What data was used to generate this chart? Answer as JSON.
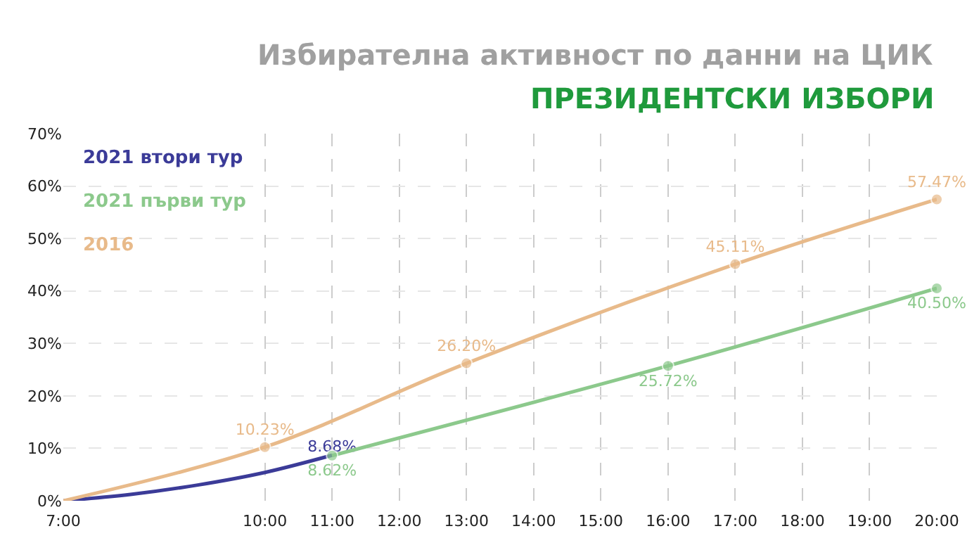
{
  "chart_data": {
    "type": "line",
    "title": "Избирателна активност по данни на ЦИК",
    "subtitle": "ПРЕЗИДЕНТСКИ ИЗБОРИ",
    "series": [
      {
        "name": "2021 втори тур",
        "color": "#3b3b98",
        "marker": "none",
        "x": [
          7,
          8,
          9,
          10,
          11
        ],
        "values": [
          0,
          1.2,
          3.0,
          5.4,
          8.68
        ],
        "value_labels": [
          null,
          null,
          null,
          null,
          "8.68%"
        ]
      },
      {
        "name": "2021 първи тур",
        "color": "#8cc98c",
        "x": [
          11,
          16,
          20
        ],
        "values": [
          8.62,
          25.72,
          40.5
        ],
        "value_labels": [
          "8.62%",
          "25.72%",
          "40.50%"
        ]
      },
      {
        "name": "2016",
        "color": "#e8ba8a",
        "x": [
          7,
          10,
          13,
          17,
          20
        ],
        "values": [
          0,
          10.23,
          26.2,
          45.11,
          57.47
        ],
        "value_labels": [
          null,
          "10.23%",
          "26.20%",
          "45.11%",
          "57.47%"
        ]
      }
    ],
    "xlim": [
      7,
      20
    ],
    "xticks": [
      {
        "value": 7,
        "label": "7:00"
      },
      {
        "value": 10,
        "label": "10:00"
      },
      {
        "value": 11,
        "label": "11:00"
      },
      {
        "value": 12,
        "label": "12:00"
      },
      {
        "value": 13,
        "label": "13:00"
      },
      {
        "value": 14,
        "label": "14:00"
      },
      {
        "value": 15,
        "label": "15:00"
      },
      {
        "value": 16,
        "label": "16:00"
      },
      {
        "value": 17,
        "label": "17:00"
      },
      {
        "value": 18,
        "label": "18:00"
      },
      {
        "value": 19,
        "label": "19:00"
      },
      {
        "value": 20,
        "label": "20:00"
      }
    ],
    "ylim": [
      0,
      70
    ],
    "yticks": [
      {
        "value": 0,
        "label": "0%"
      },
      {
        "value": 10,
        "label": "10%"
      },
      {
        "value": 20,
        "label": "20%"
      },
      {
        "value": 30,
        "label": "30%"
      },
      {
        "value": 40,
        "label": "40%"
      },
      {
        "value": 50,
        "label": "50%"
      },
      {
        "value": 60,
        "label": "60%"
      },
      {
        "value": 70,
        "label": "70%"
      }
    ],
    "grid": true,
    "legend": "top left",
    "marker": "circle",
    "line_style": "solid"
  }
}
